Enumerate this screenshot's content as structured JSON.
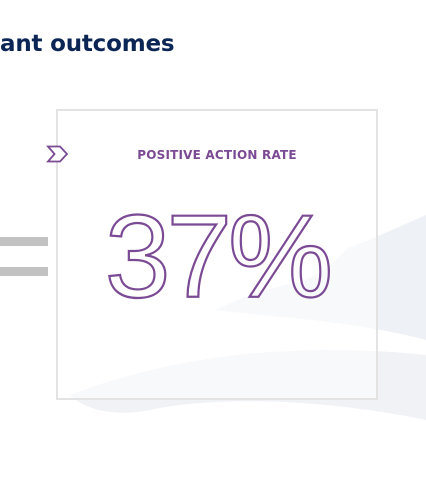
{
  "heading": {
    "text": "ant outcomes"
  },
  "stat_card": {
    "label": "POSITIVE ACTION RATE",
    "value": "37%"
  },
  "icons": {
    "marker": "chevron-right-icon",
    "operator": "equals-icon"
  },
  "colors": {
    "heading": "#0b2554",
    "accent_purple": "#7b4a94",
    "card_border": "#e3e3e3",
    "equals_gray": "#c2c2c2",
    "wave": "#eef1f5"
  }
}
